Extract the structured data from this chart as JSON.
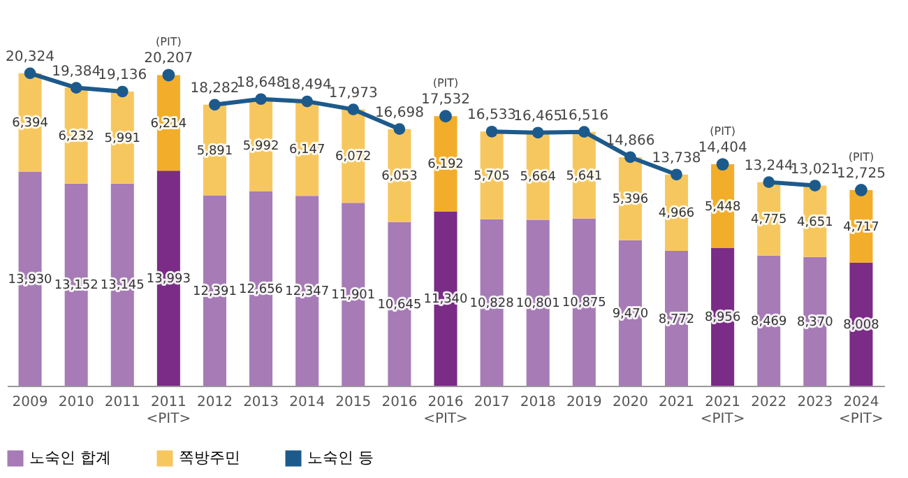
{
  "chart_data": {
    "type": "bar",
    "stacked": true,
    "legend": "bottom",
    "grid": false,
    "categories": [
      "2009",
      "2010",
      "2011",
      "2011 <PIT>",
      "2012",
      "2013",
      "2014",
      "2015",
      "2016",
      "2016 <PIT>",
      "2017",
      "2018",
      "2019",
      "2020",
      "2021",
      "2021 <PIT>",
      "2022",
      "2023",
      "2024 <PIT>"
    ],
    "series": [
      {
        "name": "노숙인 합계",
        "color": "#a67bb6",
        "colors": [
          "#a67bb6",
          "#a67bb6",
          "#a67bb6",
          "#7a2c86",
          "#a67bb6",
          "#a67bb6",
          "#a67bb6",
          "#a67bb6",
          "#a67bb6",
          "#7a2c86",
          "#a67bb6",
          "#a67bb6",
          "#a67bb6",
          "#a67bb6",
          "#a67bb6",
          "#7a2c86",
          "#a67bb6",
          "#a67bb6",
          "#7a2c86"
        ],
        "values": [
          13930,
          13152,
          13145,
          13993,
          12391,
          12656,
          12347,
          11901,
          10645,
          11340,
          10828,
          10801,
          10875,
          9470,
          8772,
          8956,
          8469,
          8370,
          8008
        ],
        "value_labels": [
          "13,930",
          "13,152",
          "13,145",
          "13,993",
          "12,391",
          "12,656",
          "12,347",
          "11,901",
          "10,645",
          "11,340",
          "10,828",
          "10,801",
          "10,875",
          "9,470",
          "8,772",
          "8,956",
          "8,469",
          "8,370",
          "8,008"
        ]
      },
      {
        "name": "쪽방주민",
        "color": "#f7c75f",
        "colors": [
          "#f7c75f",
          "#f7c75f",
          "#f7c75f",
          "#f2ae2a",
          "#f7c75f",
          "#f7c75f",
          "#f7c75f",
          "#f7c75f",
          "#f7c75f",
          "#f2ae2a",
          "#f7c75f",
          "#f7c75f",
          "#f7c75f",
          "#f7c75f",
          "#f7c75f",
          "#f2ae2a",
          "#f7c75f",
          "#f7c75f",
          "#f2ae2a"
        ],
        "values": [
          6394,
          6232,
          5991,
          6214,
          5891,
          5992,
          6147,
          6072,
          6053,
          6192,
          5705,
          5664,
          5641,
          5396,
          4966,
          5448,
          4775,
          4651,
          4717
        ],
        "value_labels": [
          "6,394",
          "6,232",
          "5,991",
          "6,214",
          "5,891",
          "5,992",
          "6,147",
          "6,072",
          "6,053",
          "6,192",
          "5,705",
          "5,664",
          "5,641",
          "5,396",
          "4,966",
          "5,448",
          "4,775",
          "4,651",
          "4,717"
        ]
      },
      {
        "name": "노숙인 등",
        "type": "line",
        "color": "#1d5a8c",
        "line_style": "solid",
        "values": [
          20324,
          19384,
          19136,
          null,
          18282,
          18648,
          18494,
          17973,
          16698,
          null,
          16533,
          16465,
          16516,
          14866,
          13738,
          null,
          13244,
          13021,
          null
        ],
        "value_labels": [
          "20,324",
          "19,384",
          "19,136",
          null,
          "18,282",
          "18,648",
          "18,494",
          "17,973",
          "16,698",
          null,
          "16,533",
          "16,465",
          "16,516",
          "14,866",
          "13,738",
          null,
          "13,244",
          "13,021",
          null
        ]
      },
      {
        "type": "scatter",
        "color": "#1d5a8c",
        "values": [
          null,
          null,
          null,
          20207,
          null,
          null,
          null,
          null,
          null,
          17532,
          null,
          null,
          null,
          null,
          null,
          14404,
          null,
          null,
          12725
        ],
        "value_labels": [
          null,
          null,
          null,
          "20,207",
          null,
          null,
          null,
          null,
          null,
          "17,532",
          null,
          null,
          null,
          null,
          null,
          "14,404",
          null,
          null,
          "12,725"
        ]
      }
    ],
    "marker": "circle",
    "annotations": [
      {
        "text": "(PIT)",
        "x": "2011 <PIT>",
        "y": 20207
      },
      {
        "text": "(PIT)",
        "x": "2016 <PIT>",
        "y": 17532
      },
      {
        "text": "(PIT)",
        "x": "2021 <PIT>",
        "y": 14404
      },
      {
        "text": "(PIT)",
        "x": "2024 <PIT>",
        "y": 12725
      }
    ]
  }
}
